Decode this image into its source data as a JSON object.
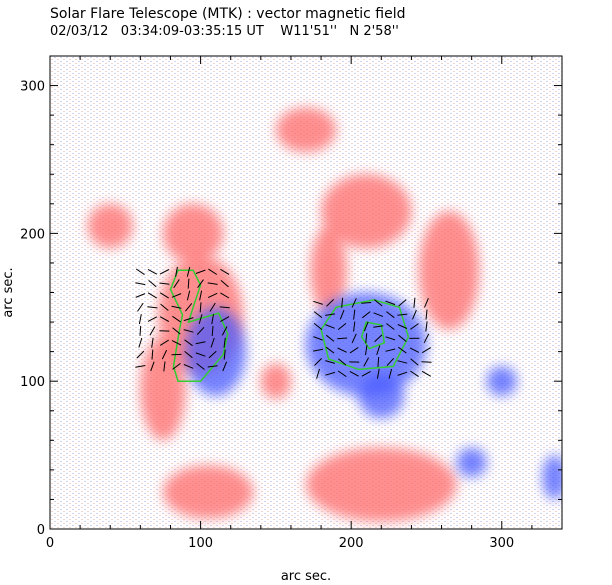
{
  "chart_data": {
    "type": "heatmap",
    "title": "Solar Flare Telescope (MTK) : vector magnetic field",
    "subtitle_parts": {
      "date": "02/03/12",
      "time": "03:34:09-03:35:15 UT",
      "lon": "W11'51''",
      "lat": "N 2'58''"
    },
    "xlabel": "arc sec.",
    "ylabel": "arc sec.",
    "xlim": [
      0,
      340
    ],
    "ylim": [
      0,
      320
    ],
    "x_ticks": [
      "0",
      "100",
      "200",
      "300"
    ],
    "x_tick_values": [
      0,
      100,
      200,
      300
    ],
    "y_ticks": [
      "0",
      "100",
      "200",
      "300"
    ],
    "y_tick_values": [
      0,
      100,
      200,
      300
    ],
    "colors": {
      "positive_polarity": "#ff6b6b",
      "negative_polarity": "#4a5cff",
      "contour": "#33cc33",
      "vectors": "#000000"
    },
    "regions": [
      {
        "polarity": "positive",
        "x": 100,
        "y": 145,
        "rx": 28,
        "ry": 40
      },
      {
        "polarity": "positive",
        "x": 95,
        "y": 200,
        "rx": 20,
        "ry": 20
      },
      {
        "polarity": "positive",
        "x": 75,
        "y": 95,
        "rx": 15,
        "ry": 35
      },
      {
        "polarity": "positive",
        "x": 210,
        "y": 215,
        "rx": 30,
        "ry": 25
      },
      {
        "polarity": "positive",
        "x": 265,
        "y": 175,
        "rx": 20,
        "ry": 40
      },
      {
        "polarity": "positive",
        "x": 185,
        "y": 175,
        "rx": 12,
        "ry": 30
      },
      {
        "polarity": "positive",
        "x": 150,
        "y": 100,
        "rx": 10,
        "ry": 12
      },
      {
        "polarity": "positive",
        "x": 105,
        "y": 25,
        "rx": 30,
        "ry": 18
      },
      {
        "polarity": "positive",
        "x": 220,
        "y": 30,
        "rx": 50,
        "ry": 25
      },
      {
        "polarity": "positive",
        "x": 40,
        "y": 205,
        "rx": 15,
        "ry": 15
      },
      {
        "polarity": "positive",
        "x": 170,
        "y": 270,
        "rx": 20,
        "ry": 15
      },
      {
        "polarity": "negative",
        "x": 110,
        "y": 120,
        "rx": 20,
        "ry": 30
      },
      {
        "polarity": "negative",
        "x": 210,
        "y": 125,
        "rx": 40,
        "ry": 35
      },
      {
        "polarity": "negative",
        "x": 220,
        "y": 90,
        "rx": 15,
        "ry": 15
      },
      {
        "polarity": "negative",
        "x": 280,
        "y": 45,
        "rx": 10,
        "ry": 10
      },
      {
        "polarity": "negative",
        "x": 300,
        "y": 100,
        "rx": 10,
        "ry": 10
      },
      {
        "polarity": "negative",
        "x": 335,
        "y": 35,
        "rx": 8,
        "ry": 15
      }
    ],
    "contours": [
      {
        "points": [
          [
            82,
            110
          ],
          [
            86,
            135
          ],
          [
            88,
            145
          ],
          [
            80,
            162
          ],
          [
            85,
            175
          ],
          [
            95,
            175
          ],
          [
            100,
            165
          ],
          [
            95,
            150
          ],
          [
            92,
            140
          ],
          [
            112,
            146
          ],
          [
            118,
            132
          ],
          [
            115,
            118
          ],
          [
            100,
            100
          ],
          [
            85,
            100
          ]
        ]
      },
      {
        "points": [
          [
            180,
            135
          ],
          [
            190,
            150
          ],
          [
            215,
            155
          ],
          [
            232,
            150
          ],
          [
            238,
            130
          ],
          [
            228,
            110
          ],
          [
            205,
            108
          ],
          [
            185,
            115
          ]
        ]
      },
      {
        "points": [
          [
            207,
            130
          ],
          [
            210,
            140
          ],
          [
            220,
            138
          ],
          [
            222,
            126
          ],
          [
            212,
            122
          ]
        ]
      }
    ],
    "vector_regions": [
      {
        "x0": 60,
        "x1": 122,
        "y0": 110,
        "y1": 175,
        "dx": 8,
        "dy": 8
      },
      {
        "x0": 178,
        "x1": 255,
        "y0": 105,
        "y1": 160,
        "dx": 8,
        "dy": 8
      }
    ]
  }
}
